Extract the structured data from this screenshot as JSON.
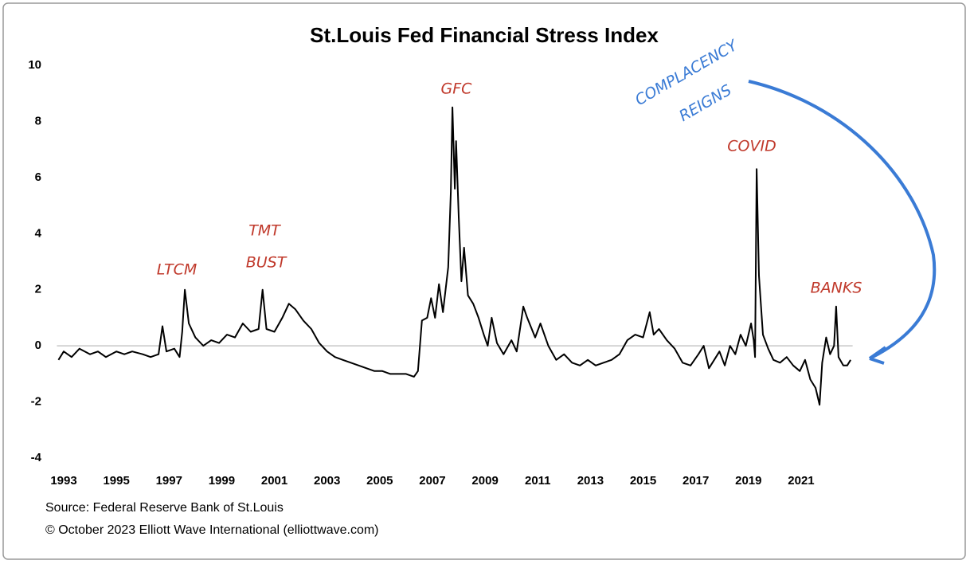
{
  "chart_data": {
    "type": "line",
    "title": "St.Louis Fed Financial Stress Index",
    "x": [
      1992.8,
      1993.0,
      1993.3,
      1993.6,
      1994.0,
      1994.3,
      1994.6,
      1995.0,
      1995.3,
      1995.6,
      1996.0,
      1996.3,
      1996.6,
      1996.75,
      1996.9,
      1997.2,
      1997.4,
      1997.5,
      1997.6,
      1997.75,
      1998.0,
      1998.3,
      1998.6,
      1998.9,
      1999.2,
      1999.5,
      1999.8,
      2000.1,
      2000.4,
      2000.55,
      2000.7,
      2001.0,
      2001.3,
      2001.55,
      2001.8,
      2002.1,
      2002.4,
      2002.7,
      2003.0,
      2003.3,
      2003.6,
      2003.9,
      2004.2,
      2004.5,
      2004.8,
      2005.1,
      2005.4,
      2005.7,
      2006.0,
      2006.3,
      2006.45,
      2006.6,
      2006.8,
      2006.95,
      2007.1,
      2007.25,
      2007.4,
      2007.5,
      2007.6,
      2007.7,
      2007.76,
      2007.85,
      2007.9,
      2008.0,
      2008.1,
      2008.2,
      2008.35,
      2008.55,
      2008.75,
      2008.95,
      2009.1,
      2009.25,
      2009.45,
      2009.7,
      2010.0,
      2010.2,
      2010.45,
      2010.6,
      2010.9,
      2011.1,
      2011.4,
      2011.7,
      2012.0,
      2012.3,
      2012.6,
      2012.9,
      2013.2,
      2013.5,
      2013.8,
      2014.1,
      2014.4,
      2014.7,
      2015.0,
      2015.25,
      2015.4,
      2015.6,
      2015.9,
      2016.2,
      2016.5,
      2016.8,
      2017.1,
      2017.3,
      2017.5,
      2017.7,
      2017.9,
      2018.1,
      2018.3,
      2018.5,
      2018.7,
      2018.9,
      2019.1,
      2019.2,
      2019.25,
      2019.31,
      2019.4,
      2019.55,
      2019.75,
      2019.95,
      2020.2,
      2020.45,
      2020.7,
      2020.95,
      2021.15,
      2021.35,
      2021.55,
      2021.7,
      2021.8,
      2021.95,
      2022.1,
      2022.25,
      2022.33,
      2022.42,
      2022.6,
      2022.75,
      2022.88
    ],
    "series": [
      {
        "color": "#000000",
        "values": [
          -0.5,
          -0.2,
          -0.4,
          -0.1,
          -0.3,
          -0.2,
          -0.4,
          -0.2,
          -0.3,
          -0.2,
          -0.3,
          -0.4,
          -0.3,
          0.7,
          -0.2,
          -0.1,
          -0.4,
          0.5,
          2.0,
          0.8,
          0.3,
          0.0,
          0.2,
          0.1,
          0.4,
          0.3,
          0.8,
          0.5,
          0.6,
          2.0,
          0.6,
          0.5,
          1.0,
          1.5,
          1.3,
          0.9,
          0.6,
          0.1,
          -0.2,
          -0.4,
          -0.5,
          -0.6,
          -0.7,
          -0.8,
          -0.9,
          -0.9,
          -1.0,
          -1.0,
          -1.0,
          -1.1,
          -0.9,
          0.9,
          1.0,
          1.7,
          1.0,
          2.2,
          1.2,
          2.0,
          2.8,
          5.5,
          8.5,
          5.6,
          7.3,
          4.6,
          2.3,
          3.5,
          1.8,
          1.5,
          1.0,
          0.4,
          0.0,
          1.0,
          0.1,
          -0.3,
          0.2,
          -0.2,
          1.4,
          1.0,
          0.3,
          0.8,
          0.0,
          -0.5,
          -0.3,
          -0.6,
          -0.7,
          -0.5,
          -0.7,
          -0.6,
          -0.5,
          -0.3,
          0.2,
          0.4,
          0.3,
          1.2,
          0.4,
          0.6,
          0.2,
          -0.1,
          -0.6,
          -0.7,
          -0.3,
          0.0,
          -0.8,
          -0.5,
          -0.2,
          -0.7,
          0.0,
          -0.3,
          0.4,
          0.0,
          0.8,
          0.2,
          -0.4,
          6.3,
          2.5,
          0.4,
          -0.1,
          -0.5,
          -0.6,
          -0.4,
          -0.7,
          -0.9,
          -0.5,
          -1.2,
          -1.5,
          -2.1,
          -0.6,
          0.3,
          -0.3,
          0.0,
          1.4,
          -0.4,
          -0.7,
          -0.7,
          -0.5
        ]
      }
    ],
    "xlim": [
      1992.5,
      2023.5
    ],
    "xticks": [
      1993,
      1995,
      1997,
      1999,
      2001,
      2003,
      2005,
      2007,
      2009,
      2011,
      2013,
      2015,
      2017,
      2019,
      2021
    ],
    "ylim": [
      -4,
      10
    ],
    "yticks": [
      -4,
      -2,
      0,
      2,
      4,
      6,
      8,
      10
    ],
    "zero_line": true,
    "annotations": [
      "LTCM",
      "TMT",
      "BUST",
      "GFC",
      "COVID",
      "BANKS",
      "COMPLACENCY",
      "REIGNS"
    ],
    "source": "Source: Federal Reserve Bank of St.Louis",
    "copyright": "© October 2023 Elliott Wave International (elliottwave.com)"
  }
}
